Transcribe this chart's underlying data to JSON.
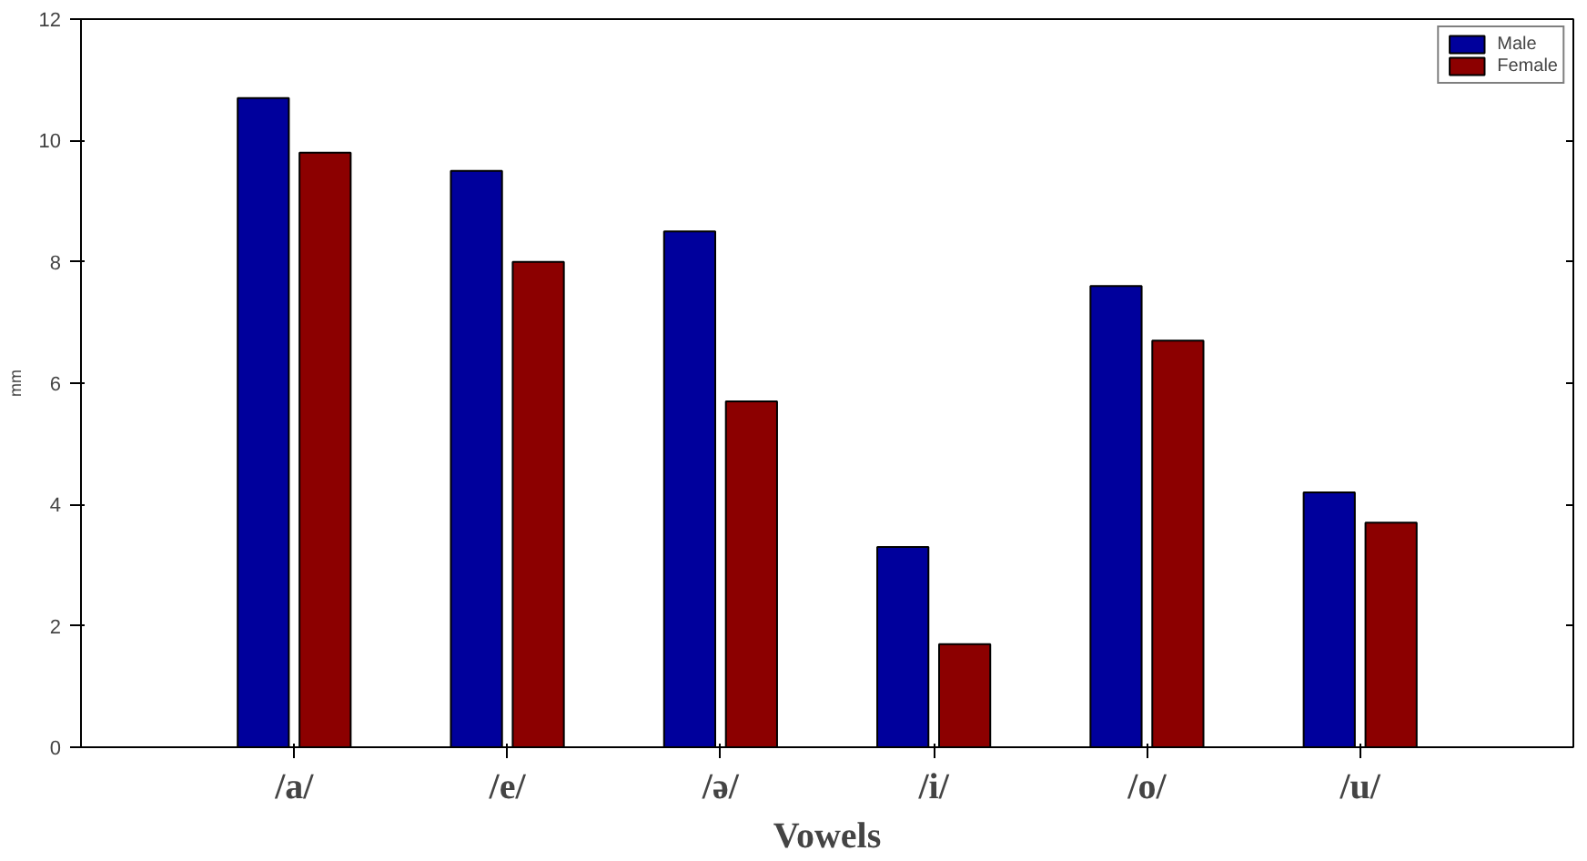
{
  "chart_data": {
    "type": "bar",
    "xlabel": "Vowels",
    "ylabel": "mm",
    "categories": [
      "/a/",
      "/e/",
      "/ə/",
      "/i/",
      "/o/",
      "/u/"
    ],
    "series": [
      {
        "name": "Male",
        "color": "#00009c",
        "values": [
          10.7,
          9.5,
          8.5,
          3.3,
          7.6,
          4.2
        ]
      },
      {
        "name": "Female",
        "color": "#8c0000",
        "values": [
          9.8,
          8.0,
          5.7,
          1.7,
          6.7,
          3.7
        ]
      }
    ],
    "ylim": [
      0,
      12
    ],
    "yticks": [
      0,
      2,
      4,
      6,
      8,
      10,
      12
    ],
    "grid": false,
    "legend": "top right"
  }
}
